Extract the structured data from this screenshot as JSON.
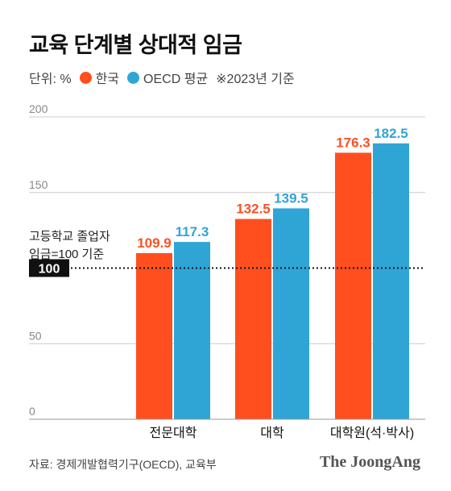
{
  "colors": {
    "korea": "#ff4f1f",
    "oecd": "#2fa5d6",
    "reference": "#111111",
    "grid": "#cccccc"
  },
  "header": {
    "title": "교육 단계별 상대적 임금",
    "unit": "단위: %",
    "korea_label": "한국",
    "oecd_label": "OECD 평균",
    "note": "※2023년 기준"
  },
  "chart_data": {
    "type": "bar",
    "title": "교육 단계별 상대적 임금",
    "categories": [
      "전문대학",
      "대학",
      "대학원(석·박사)"
    ],
    "series": [
      {
        "name": "한국",
        "values": [
          109.9,
          132.5,
          176.3
        ]
      },
      {
        "name": "OECD 평균",
        "values": [
          117.3,
          139.5,
          182.5
        ]
      }
    ],
    "ylim": [
      0,
      200
    ],
    "yticks": [
      "0",
      "50",
      "100",
      "150",
      "200"
    ],
    "grid": true,
    "legend": "top-left",
    "reference": {
      "value": 100,
      "label": "100",
      "annotation": [
        "고등학교 졸업자",
        "임금=100 기준"
      ]
    }
  },
  "footer": {
    "source": "자료: 경제개발협력기구(OECD), 교육부",
    "logo": "The JoongAng"
  }
}
